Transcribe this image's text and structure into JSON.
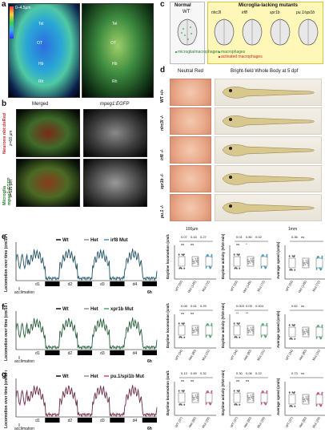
{
  "panels": {
    "a": {
      "label": "a",
      "scale": "0–4.5µm",
      "marks_left": [
        "Tel",
        "OT",
        "Hb",
        "Rh"
      ],
      "marks_right": [
        "Tel",
        "OT",
        "Hb",
        "Rh"
      ]
    },
    "b": {
      "label": "b",
      "col_titles": [
        "Merged",
        "mpeg1:EGFP"
      ],
      "row1_side": "Neurons nbt:dsRed",
      "row1_depth": "z=68 µm",
      "row2_side": "Microglia mpeg1:EGFP",
      "row2_depth": "z=115 µm"
    },
    "c": {
      "label": "c",
      "normal": "Normal",
      "wt": "WT",
      "mutants_header": "Microglia-lacking mutants",
      "mutants": [
        "nlrc3l",
        "irf8",
        "xpr1b",
        "pu.1/spi1b"
      ],
      "legend": [
        "microglia/macrophages",
        "macrophages",
        "activated macrophages"
      ]
    },
    "d": {
      "label": "d",
      "col_titles": [
        "Neutral Red",
        "Bright-field Whole Body at 5 dpf"
      ],
      "rows": [
        "WT +/+",
        "nlrc3l -/-",
        "irf8 -/-",
        "xpr1b -/-",
        "pu.1 -/-"
      ],
      "scale_left": "100µm",
      "scale_right": "1mm"
    },
    "e": {
      "label": "e"
    },
    "f": {
      "label": "f"
    },
    "g": {
      "label": "g"
    }
  },
  "trace_common": {
    "ylabel": "Locomotion over time (cm/10 min)",
    "days": [
      "d1",
      "d2",
      "d3",
      "d4"
    ],
    "acclimation": "acclimation",
    "time_scale": "6h"
  },
  "traces": [
    {
      "legend": [
        "Wt",
        "Het",
        "irf8 Mut"
      ],
      "accent": "#2d8fb5"
    },
    {
      "legend": [
        "Wt",
        "Het",
        "xpr1b Mut"
      ],
      "accent": "#3aa35e"
    },
    {
      "legend": [
        "Wt",
        "Het",
        "pu.1/spi1b Mut"
      ],
      "accent": "#c23b7a"
    }
  ],
  "dots": [
    {
      "row": "e",
      "charts": [
        {
          "ylabel": "Daytime locomotion (cm/10 min)",
          "cats": [
            "WT (93)",
            "Het (145)",
            "Mut (72)"
          ],
          "stats": [
            "0.07",
            "0.43",
            "0.27",
            "ns",
            "ns"
          ]
        },
        {
          "ylabel": "Daytime activity (#/10 min)",
          "cats": [
            "WT (93)",
            "Het (145)",
            "Mut (72)"
          ],
          "stats": [
            "0.01",
            "0.80",
            "0.02",
            "ns",
            "*"
          ]
        },
        {
          "ylabel": "Average speed (cm/s)",
          "cats": [
            "WT (93)",
            "Het (145)",
            "Mut (72)"
          ],
          "stats": [
            "0.36",
            "ns"
          ]
        }
      ]
    },
    {
      "row": "f",
      "charts": [
        {
          "ylabel": "Daytime locomotion (cm/10 min)",
          "cats": [
            "WT (34)",
            "Het (80)",
            "Mut (31)"
          ],
          "stats": [
            "0.08",
            "0.61",
            "0.29",
            "ns",
            "ns"
          ]
        },
        {
          "ylabel": "Daytime activity (#/10 min)",
          "cats": [
            "WT (34)",
            "Het (80)",
            "Mut (31)"
          ],
          "stats": [
            "0.003",
            "0.09",
            "0.004",
            "**",
            "**"
          ]
        },
        {
          "ylabel": "Average speed (cm/s)",
          "cats": [
            "WT (34)",
            "Het (80)",
            "Mut (31)"
          ],
          "stats": [
            "0.62",
            "ns"
          ]
        }
      ]
    },
    {
      "row": "g",
      "charts": [
        {
          "ylabel": "Daytime locomotion (cm/10 min)",
          "cats": [
            "WT (37)",
            "Het (60)",
            "Mut (29)"
          ],
          "stats": [
            "0.13",
            "0.69",
            "0.32",
            "ns",
            "ns"
          ]
        },
        {
          "ylabel": "Daytime activity (#/10 min)",
          "cats": [
            "WT (37)",
            "Het (60)",
            "Mut (29)"
          ],
          "stats": [
            "0.30",
            "0.06",
            "0.22",
            "ns",
            "ns"
          ]
        },
        {
          "ylabel": "Average speed (cm/s)",
          "cats": [
            "WT (37)",
            "Het (60)",
            "Mut (29)"
          ],
          "stats": [
            "0.73",
            "ns"
          ]
        }
      ]
    }
  ]
}
